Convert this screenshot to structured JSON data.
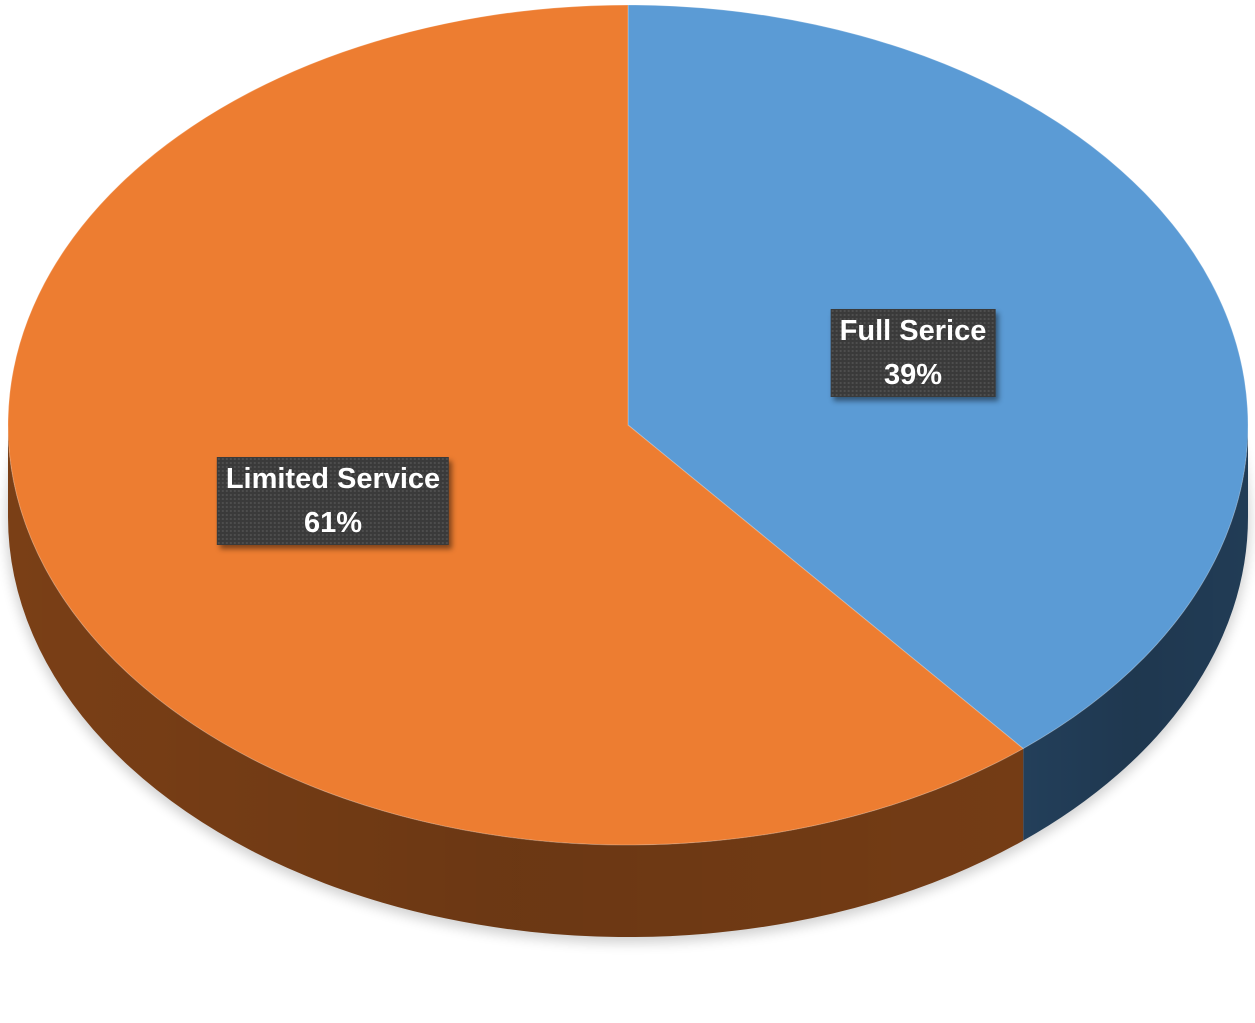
{
  "chart_data": {
    "type": "pie",
    "title": "",
    "categories": [
      "Full Serice",
      "Limited Service"
    ],
    "values": [
      39,
      61
    ],
    "value_labels": [
      "39%",
      "61%"
    ],
    "colors": [
      "#5B9BD5",
      "#ED7D31"
    ],
    "side_colors": [
      "#233F5A",
      "#7A3F16"
    ],
    "start_angle_deg": 0,
    "direction": "clockwise",
    "style": "3d",
    "legend": "none"
  }
}
